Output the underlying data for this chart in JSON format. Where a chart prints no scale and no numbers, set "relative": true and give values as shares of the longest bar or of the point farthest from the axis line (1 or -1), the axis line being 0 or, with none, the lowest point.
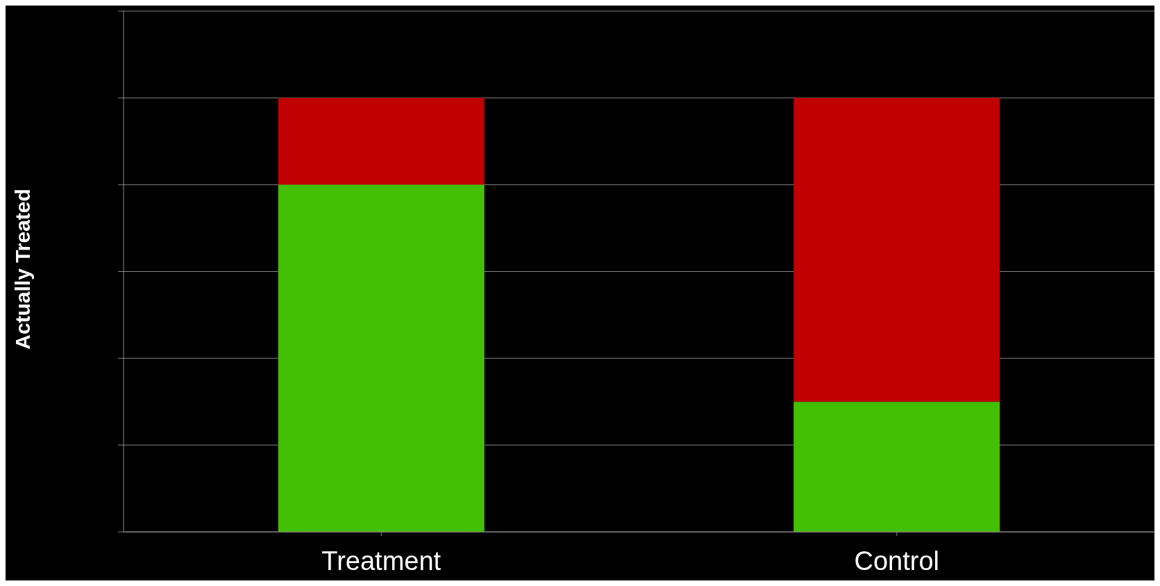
{
  "chart_data": {
    "type": "bar",
    "stacked": true,
    "relative": true,
    "ylabel": "Actually Treated",
    "categories": [
      "Treatment",
      "Control"
    ],
    "series": [
      {
        "color": "#43bf04",
        "values": [
          0.8,
          0.3
        ]
      },
      {
        "color": "#c00000",
        "values": [
          0.2,
          0.7
        ]
      }
    ],
    "grid": "y",
    "legend": false
  }
}
